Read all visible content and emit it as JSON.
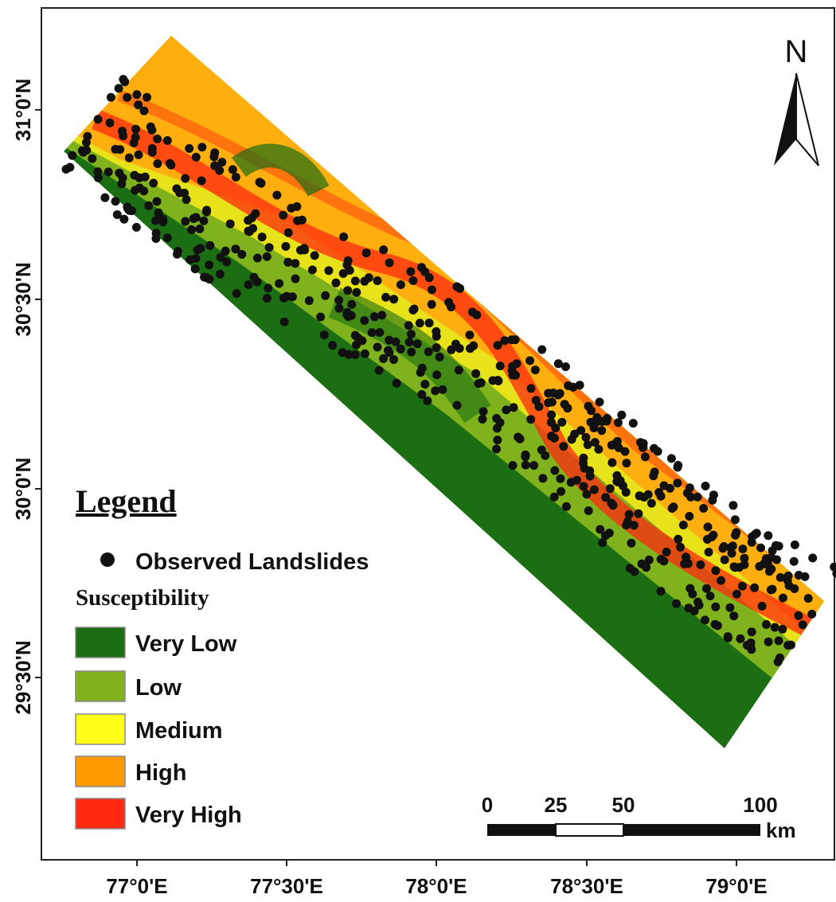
{
  "map": {
    "lat_labels": [
      "31°0'N",
      "30°30'N",
      "30°0'N",
      "29°30'N"
    ],
    "lon_labels": [
      "77°0'E",
      "77°30'E",
      "78°0'E",
      "78°30'E",
      "79°0'E"
    ],
    "north_arrow": "N",
    "legend": {
      "title": "Legend",
      "points_label": "Observed Landslides",
      "classes_title": "Susceptibility",
      "classes": [
        {
          "label": "Very Low",
          "color": "#1b6e12"
        },
        {
          "label": "Low",
          "color": "#7fb21c"
        },
        {
          "label": "Medium",
          "color": "#ffff1a"
        },
        {
          "label": "High",
          "color": "#ff9a00"
        },
        {
          "label": "Very High",
          "color": "#ff2a10"
        }
      ]
    },
    "scale_bar": {
      "labels": [
        "0",
        "25",
        "50",
        "100"
      ],
      "unit": "km"
    }
  }
}
